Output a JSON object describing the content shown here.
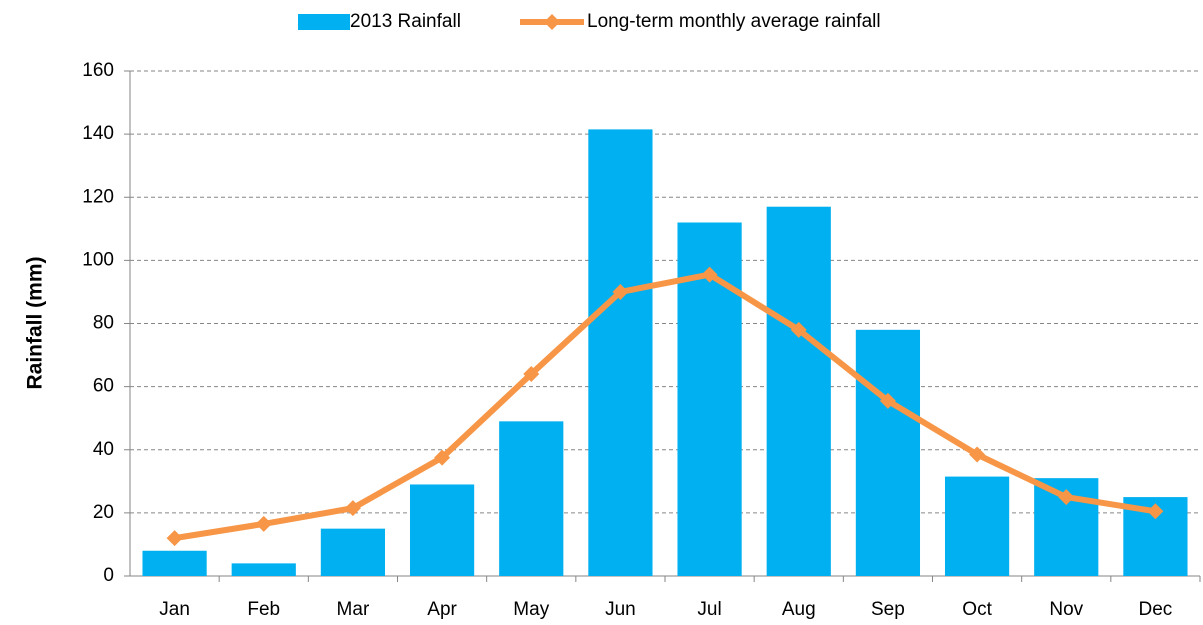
{
  "chart_data": {
    "type": "bar",
    "y_label": "Rainfall (mm)",
    "categories": [
      "Jan",
      "Feb",
      "Mar",
      "Apr",
      "May",
      "Jun",
      "Jul",
      "Aug",
      "Sep",
      "Oct",
      "Nov",
      "Dec"
    ],
    "series": [
      {
        "name": "2013 Rainfall",
        "type": "bar",
        "color": "#00b0f0",
        "values": [
          8,
          4,
          15,
          29,
          49,
          141.5,
          112,
          117,
          78,
          31.5,
          31,
          25
        ]
      },
      {
        "name": "Long-term monthly  average rainfall",
        "type": "line",
        "color": "#f79646",
        "values": [
          12,
          16.5,
          21.5,
          37.5,
          64,
          90,
          95.5,
          78,
          55.5,
          38.5,
          25,
          20.5
        ]
      }
    ],
    "ylim": [
      0,
      160
    ],
    "yticks": [
      0,
      20,
      40,
      60,
      80,
      100,
      120,
      140,
      160
    ],
    "grid": true,
    "legend": "top"
  }
}
